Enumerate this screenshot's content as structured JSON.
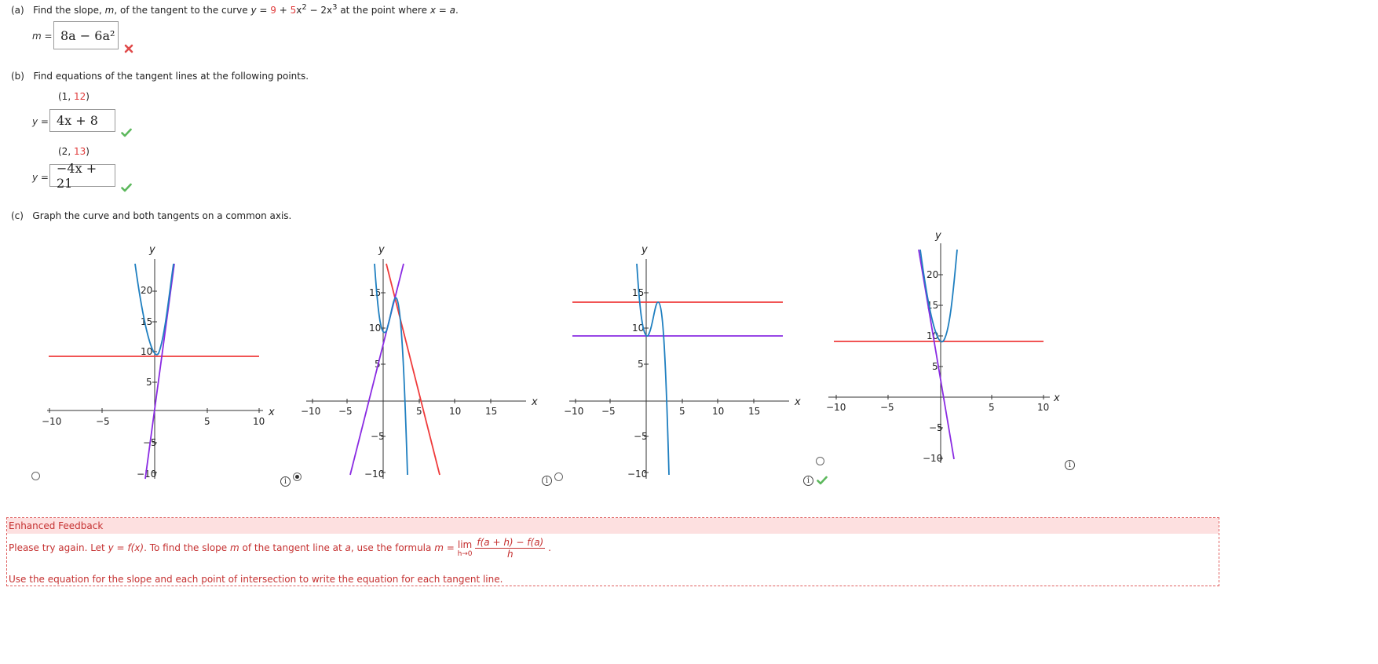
{
  "part_a": {
    "label": "(a)",
    "question": [
      "Find the slope, ",
      "m",
      ", of the tangent to the curve ",
      "y",
      " = ",
      "9",
      " + ",
      "5",
      "x",
      "2",
      " − 2x",
      "3",
      " at the point where ",
      "x",
      " = ",
      "a",
      "."
    ],
    "m_label": "m =",
    "answer": "8a − 6a²",
    "status": "incorrect"
  },
  "part_b": {
    "label": "(b)",
    "question": "Find equations of the tangent lines at the following points.",
    "points": [
      {
        "open": "(1, ",
        "y": "12",
        "close": ")",
        "y_label": "y =",
        "answer": "4x + 8",
        "status": "correct"
      },
      {
        "open": "(2, ",
        "y": "13",
        "close": ")",
        "y_label": "y =",
        "answer": "−4x + 21",
        "status": "correct"
      }
    ]
  },
  "part_c": {
    "label": "(c)",
    "question": "Graph the curve and both tangents on a common axis.",
    "options": [
      {
        "selected": false,
        "status": ""
      },
      {
        "selected": true,
        "status": ""
      },
      {
        "selected": false,
        "status": ""
      },
      {
        "selected": false,
        "status": "correct"
      }
    ],
    "axis_x_label": "x",
    "axis_y_label": "y",
    "info_glyph": "i"
  },
  "feedback": {
    "title": "Enhanced Feedback",
    "line1_pre": "Please try again. Let ",
    "line1_def": "y = f(x)",
    "line1_mid": ". To find the slope ",
    "line1_m": "m",
    "line1_mid2": " of the tangent line at ",
    "line1_a": "a",
    "line1_post": ", use the formula ",
    "formula_lhs": "m = ",
    "lim_word": "lim",
    "lim_sub": "h→0",
    "frac_num": "f(a + h) − f(a)",
    "frac_den": "h",
    "line1_end": ".",
    "line2": "Use the equation for the slope and each point of intersection to write the equation for each tangent line."
  },
  "colors": {
    "curve": "#1f7fc0",
    "tangent_red": "#ef3b3b",
    "tangent_purple": "#8a2be2",
    "correct": "#5cb85c",
    "incorrect": "#e04a4a"
  }
}
